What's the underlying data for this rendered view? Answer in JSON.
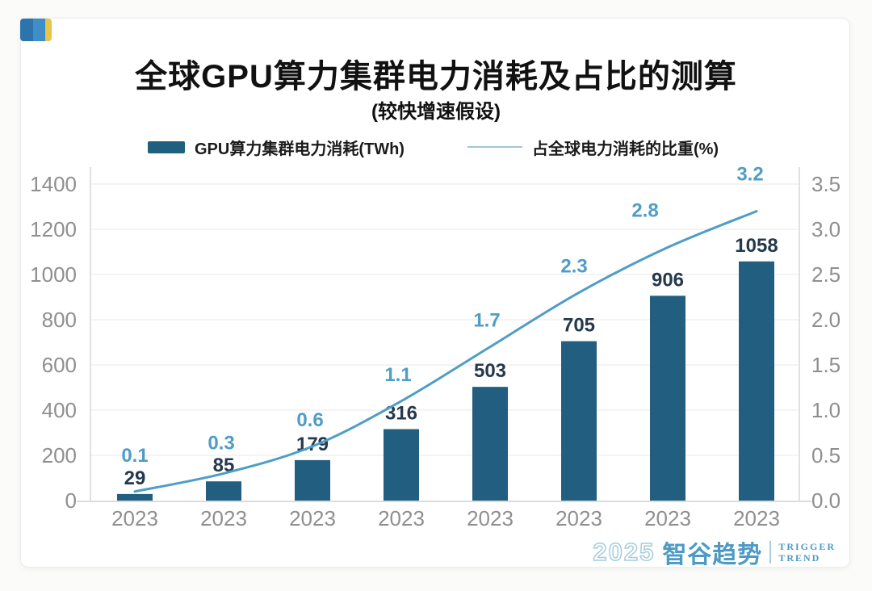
{
  "header": {
    "title": "全球GPU算力集群电力消耗及占比的测算",
    "subtitle": "(较快增速假设)"
  },
  "logo_chip": {
    "colors": [
      "#2d74ad",
      "#3f8ec8",
      "#e7c44a"
    ]
  },
  "legend": {
    "bar": {
      "label": "GPU算力集群电力消耗(TWh)",
      "color": "#20607f"
    },
    "line": {
      "label": "占全球电力消耗的比重(%)",
      "color": "#a3c6d6"
    }
  },
  "chart_data": {
    "type": "bar",
    "subtype": "bar-line-combo",
    "categories": [
      "2023",
      "2023",
      "2023",
      "2023",
      "2023",
      "2023",
      "2023",
      "2023"
    ],
    "series": [
      {
        "name": "GPU算力集群电力消耗(TWh)",
        "type": "bar",
        "axis": "left",
        "color": "#215e80",
        "label_color": "#25384d",
        "values": [
          29,
          85,
          179,
          316,
          503,
          705,
          906,
          1058
        ]
      },
      {
        "name": "占全球电力消耗的比重(%)",
        "type": "line",
        "axis": "right",
        "color": "#4f9dc7",
        "label_color": "#4f9dc7",
        "values": [
          0.1,
          0.3,
          0.6,
          1.1,
          1.7,
          2.3,
          2.8,
          3.2
        ]
      }
    ],
    "title": "全球GPU算力集群电力消耗及占比的测算",
    "subtitle": "(较快增速假设)",
    "xlabel": "",
    "ylabel_left": "TWh",
    "ylabel_right": "%",
    "left_axis": {
      "min": 0,
      "max": 1400,
      "step": 200,
      "ticks": [
        "0",
        "200",
        "400",
        "600",
        "800",
        "1000",
        "1200",
        "1400"
      ]
    },
    "right_axis": {
      "min": 0,
      "max": 3.5,
      "step": 0.5,
      "ticks": [
        "0.0",
        "0.5",
        "1.0",
        "1.5",
        "2.0",
        "2.5",
        "3.0",
        "3.5"
      ]
    },
    "grid": true,
    "legend_position": "top",
    "tick_color": "#8f8f8f",
    "grid_color": "#eaeaea",
    "spine_color": "#d7d7d7"
  },
  "watermark": {
    "year": "2025",
    "brand": "智谷趋势",
    "tagline_1": "TRIGGER",
    "tagline_2": "TREND"
  }
}
